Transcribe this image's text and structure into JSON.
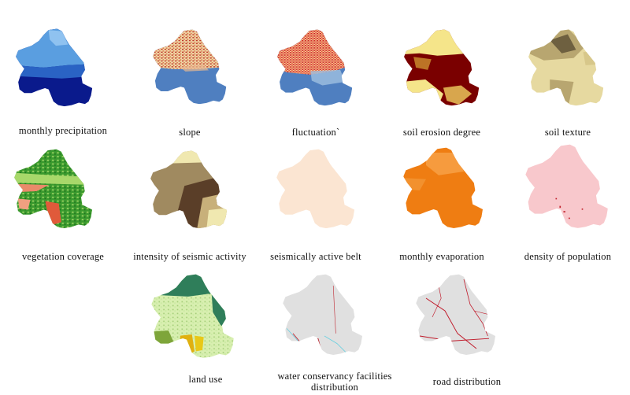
{
  "colors": {
    "precipitation": [
      "#5a9ee0",
      "#2a63c4",
      "#0a1a8c"
    ],
    "slope": [
      "#c03a2a",
      "#f0d9a8",
      "#4f7fc0"
    ],
    "soil_erosion": [
      "#7a0000",
      "#f5e58a"
    ],
    "soil_texture": [
      "#e6d9a0",
      "#b8a670",
      "#6e6040"
    ],
    "vegetation": [
      "#3a9a2e",
      "#a8d86a",
      "#e98a6a"
    ],
    "seismic": [
      "#f0e8b0",
      "#a08a60",
      "#5a3e28"
    ],
    "seismic_belt": "#fbe5d2",
    "evaporation": "#ef7d12",
    "population": [
      "#f8c8cc",
      "#c0202a"
    ],
    "land_use": [
      "#2f7e5a",
      "#d8efb0",
      "#7ea53a"
    ],
    "water": [
      "#e0e0e0",
      "#c0303a",
      "#6ad0e0"
    ],
    "road": [
      "#e0e0e0",
      "#c01a2a"
    ]
  },
  "maps": [
    {
      "id": "precipitation",
      "caption": "monthly precipitation"
    },
    {
      "id": "slope",
      "caption": "slope"
    },
    {
      "id": "fluctuation",
      "caption": "fluctuation`"
    },
    {
      "id": "soil_erosion",
      "caption": "soil erosion degree"
    },
    {
      "id": "soil_texture",
      "caption": "soil texture"
    },
    {
      "id": "vegetation",
      "caption": "vegetation coverage"
    },
    {
      "id": "seismic",
      "caption": "intensity of seismic activity"
    },
    {
      "id": "seismic_belt",
      "caption": "seismically active belt"
    },
    {
      "id": "evaporation",
      "caption": "monthly evaporation"
    },
    {
      "id": "population",
      "caption": "density of population"
    },
    {
      "id": "land_use",
      "caption": "land use"
    },
    {
      "id": "water",
      "caption": "water conservancy facilities distribution"
    },
    {
      "id": "road",
      "caption": "road distribution"
    }
  ]
}
